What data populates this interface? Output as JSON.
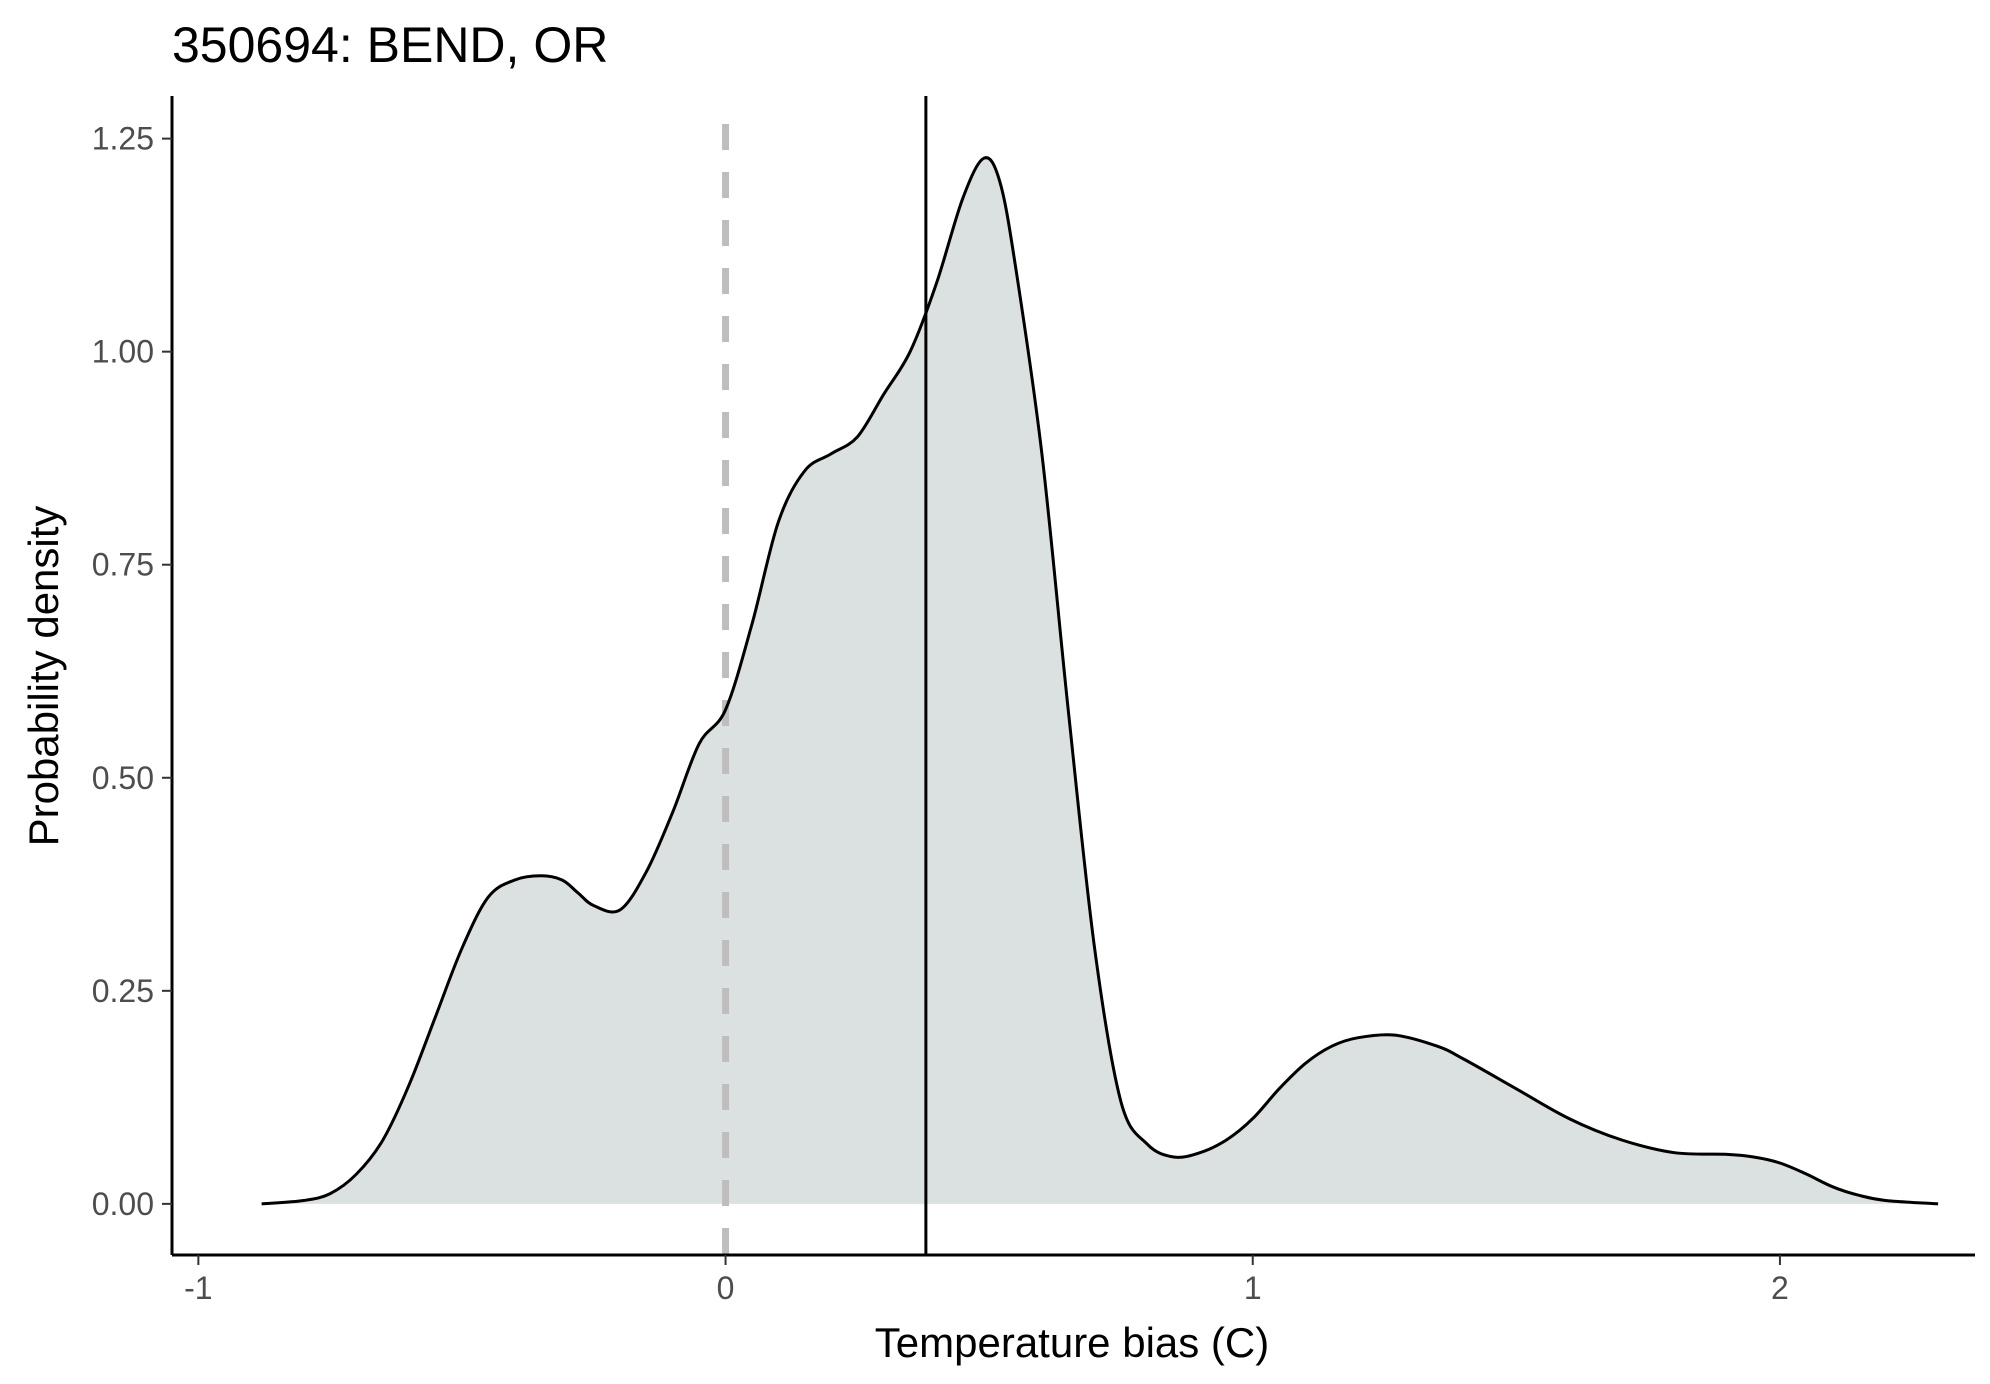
{
  "chart_data": {
    "type": "area",
    "title": "350694: BEND, OR",
    "xlabel": "Temperature bias (C)",
    "ylabel": "Probability density",
    "xlim": [
      -1.05,
      2.37
    ],
    "ylim": [
      -0.06,
      1.3
    ],
    "xticks": [
      -1,
      0,
      1,
      2
    ],
    "xtick_labels": [
      "-1",
      "0",
      "1",
      "2"
    ],
    "yticks": [
      0,
      0.25,
      0.5,
      0.75,
      1.0,
      1.25
    ],
    "ytick_labels": [
      "0.00",
      "0.25",
      "0.50",
      "0.75",
      "1.00",
      "1.25"
    ],
    "grid": false,
    "legend": "none",
    "fill_color": "#dbe0e1",
    "line_color": "#000000",
    "zero_line": {
      "x": 0,
      "style": "dashed",
      "color": "#bebebe"
    },
    "mean_line": {
      "x": 0.38,
      "style": "solid",
      "color": "#000000"
    },
    "x": [
      -0.88,
      -0.8,
      -0.75,
      -0.7,
      -0.65,
      -0.6,
      -0.55,
      -0.5,
      -0.45,
      -0.4,
      -0.35,
      -0.31,
      -0.28,
      -0.25,
      -0.2,
      -0.15,
      -0.1,
      -0.05,
      0,
      0.05,
      0.1,
      0.15,
      0.2,
      0.25,
      0.3,
      0.35,
      0.4,
      0.45,
      0.49,
      0.52,
      0.55,
      0.6,
      0.65,
      0.7,
      0.75,
      0.8,
      0.85,
      0.9,
      0.95,
      1.0,
      1.05,
      1.1,
      1.15,
      1.2,
      1.27,
      1.35,
      1.4,
      1.5,
      1.6,
      1.7,
      1.8,
      1.9,
      1.95,
      2.0,
      2.05,
      2.1,
      2.15,
      2.2,
      2.3
    ],
    "y": [
      0.0,
      0.004,
      0.012,
      0.035,
      0.075,
      0.14,
      0.22,
      0.3,
      0.36,
      0.38,
      0.385,
      0.38,
      0.365,
      0.35,
      0.345,
      0.39,
      0.46,
      0.54,
      0.58,
      0.68,
      0.8,
      0.86,
      0.88,
      0.9,
      0.95,
      1.0,
      1.08,
      1.18,
      1.227,
      1.2,
      1.1,
      0.88,
      0.58,
      0.3,
      0.12,
      0.07,
      0.055,
      0.06,
      0.075,
      0.1,
      0.135,
      0.165,
      0.185,
      0.195,
      0.198,
      0.185,
      0.17,
      0.135,
      0.1,
      0.075,
      0.06,
      0.058,
      0.055,
      0.048,
      0.035,
      0.02,
      0.01,
      0.004,
      0.0
    ]
  }
}
